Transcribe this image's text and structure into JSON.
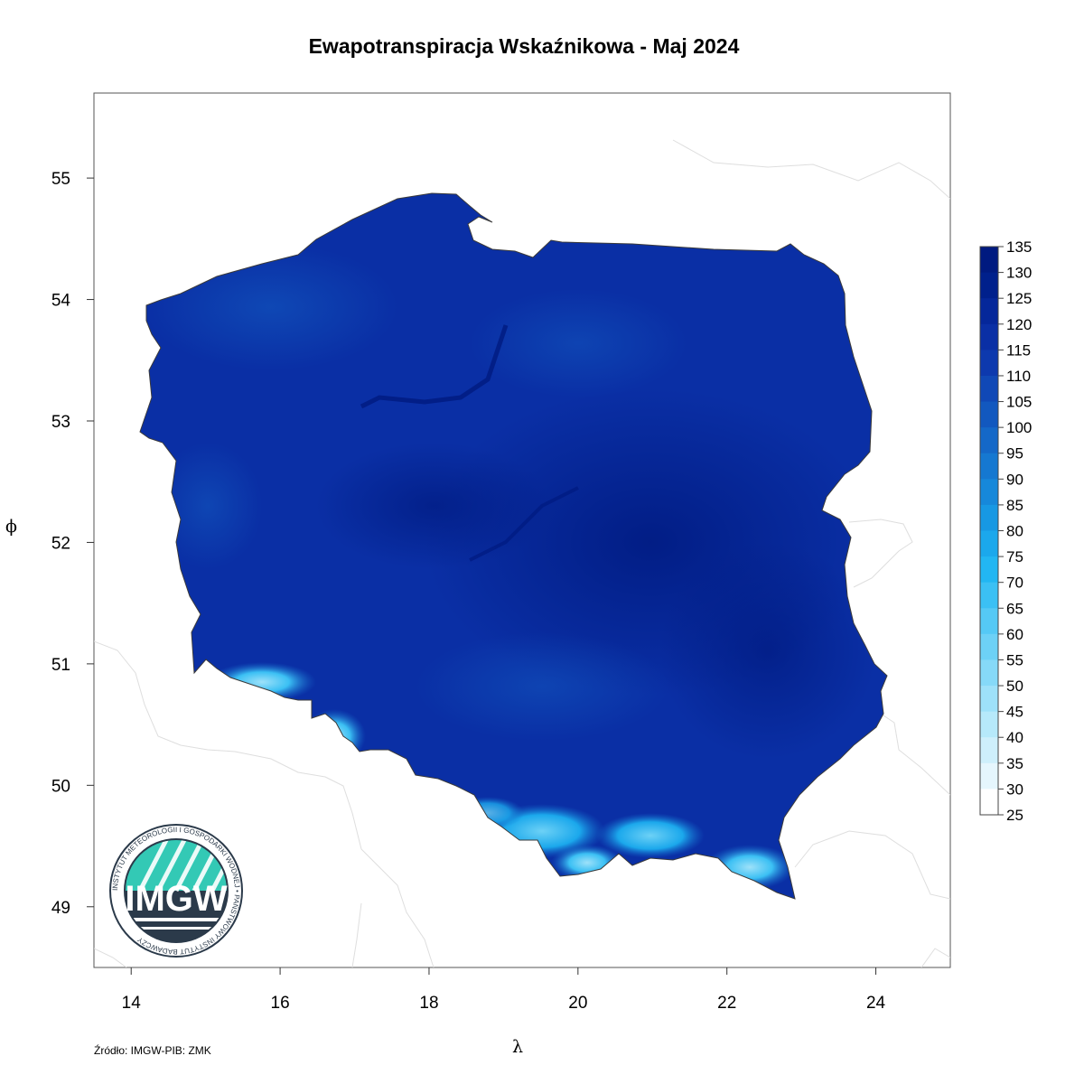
{
  "title": "Ewapotranspiracja Wskaźnikowa - Maj 2024",
  "source": "Źródło: IMGW-PIB: ZMK",
  "axes": {
    "x_label": "λ",
    "y_label": "ϕ",
    "x_ticks": [
      "14",
      "16",
      "18",
      "20",
      "22",
      "24"
    ],
    "y_ticks": [
      "49",
      "50",
      "51",
      "52",
      "53",
      "54",
      "55"
    ],
    "xlim": [
      13.5,
      25.0
    ],
    "ylim": [
      48.5,
      55.7
    ]
  },
  "legend": {
    "labels": [
      "135",
      "130",
      "125",
      "120",
      "115",
      "110",
      "105",
      "100",
      "95",
      "90",
      "85",
      "80",
      "75",
      "70",
      "65",
      "60",
      "55",
      "50",
      "45",
      "40",
      "35",
      "30",
      "25"
    ],
    "colors": [
      "#001a80",
      "#00208c",
      "#05279a",
      "#0a2fa5",
      "#0d39ae",
      "#1048b6",
      "#1258bf",
      "#1468c8",
      "#1578d1",
      "#1688da",
      "#1798e3",
      "#1ba8ec",
      "#22b6f2",
      "#3bc0f4",
      "#55c9f5",
      "#6dd1f6",
      "#86d9f8",
      "#9ee1f9",
      "#b6e9fa",
      "#ceeffb",
      "#e5f6fd",
      "#ffffff"
    ]
  },
  "logo": {
    "text": "IMGW",
    "ring_text": "INSTYTUT METEOROLOGII I GOSPODARKI WODNEJ • PAŃSTWOWY INSTYTUT BADAWCZY"
  },
  "colors": {
    "dominant": "#0a2fa5",
    "dark": "#001a80",
    "mountain_low": "#6dd1f6",
    "border": "#dddddd"
  }
}
